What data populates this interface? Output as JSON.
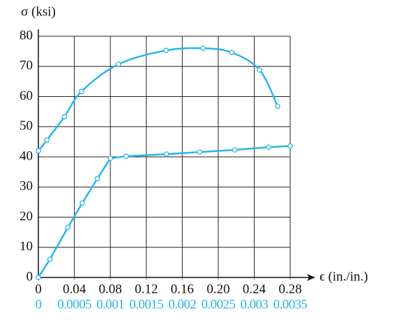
{
  "chart_data": {
    "type": "line",
    "ylabel": "σ (ksi)",
    "xlabel": "ϵ (in./in.)",
    "xlim": [
      0,
      0.28
    ],
    "ylim": [
      0,
      80
    ],
    "xticks": [
      0,
      0.04,
      0.08,
      0.12,
      0.16,
      {
        "value": 0.2,
        "label": "0.20"
      },
      0.24,
      0.28
    ],
    "yticks": [
      0,
      10,
      20,
      30,
      40,
      50,
      60,
      70,
      80
    ],
    "x2lim": [
      0,
      0.0035
    ],
    "x2ticks": [
      0,
      0.0005,
      0.001,
      0.0015,
      0.002,
      0.0025,
      0.003,
      0.0035
    ],
    "x2color": "#29b5e8",
    "grid": true,
    "series": [
      {
        "color": "#29b5e8",
        "smooth": true,
        "x": [
          0,
          0.0093,
          0.029,
          0.048,
          0.089,
          0.142,
          0.183,
          0.215,
          0.246,
          0.266
        ],
        "values": [
          42,
          45.5,
          53.3,
          61.7,
          70.7,
          75.3,
          76,
          74.6,
          68.8,
          56.8
        ]
      },
      {
        "color": "#29b5e8",
        "smooth": false,
        "axis": "x2",
        "x": [
          0,
          0.00016,
          0.00041,
          0.00061,
          0.00082,
          0.001,
          0.00122,
          0.00178,
          0.00224,
          0.00273,
          0.0032,
          0.0035
        ],
        "values": [
          0,
          6,
          16.6,
          24.7,
          32.8,
          39.5,
          40.2,
          40.9,
          41.6,
          42.3,
          43.2,
          43.6
        ]
      }
    ]
  }
}
